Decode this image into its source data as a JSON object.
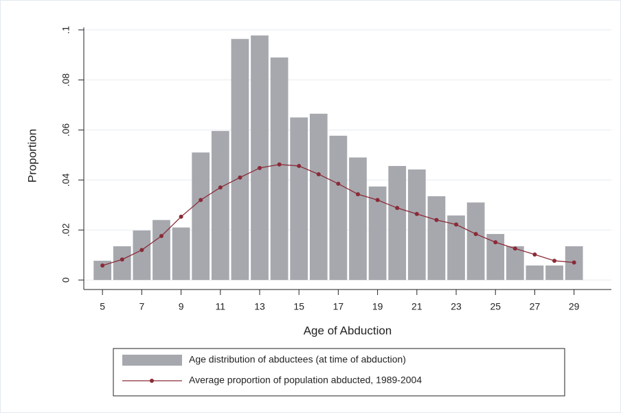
{
  "chart_data": {
    "type": "bar",
    "x_label": "Age of Abduction",
    "y_label": "Proportion",
    "x": [
      5,
      6,
      7,
      8,
      9,
      10,
      11,
      12,
      13,
      14,
      15,
      16,
      17,
      18,
      19,
      20,
      21,
      22,
      23,
      24,
      25,
      26,
      27,
      28,
      29
    ],
    "series": [
      {
        "name": "Age distribution of abductees (at time of abduction)",
        "type": "bar",
        "color": "#a6a8ae",
        "values": [
          0.0077,
          0.0135,
          0.0198,
          0.024,
          0.021,
          0.051,
          0.0596,
          0.0964,
          0.0978,
          0.089,
          0.065,
          0.0665,
          0.0577,
          0.049,
          0.0374,
          0.0456,
          0.0442,
          0.0335,
          0.0258,
          0.031,
          0.0184,
          0.0135,
          0.0058,
          0.0058,
          0.0135
        ]
      },
      {
        "name": "Average proportion of population abducted, 1989-2004",
        "type": "line",
        "color": "#8b2a36",
        "values": [
          0.0058,
          0.0082,
          0.012,
          0.0176,
          0.0253,
          0.032,
          0.037,
          0.041,
          0.0448,
          0.0462,
          0.0456,
          0.0423,
          0.0385,
          0.0343,
          0.032,
          0.0288,
          0.0264,
          0.024,
          0.0222,
          0.0184,
          0.0151,
          0.0126,
          0.0102,
          0.0077,
          0.007
        ]
      }
    ],
    "xlim": [
      4.05,
      30.9
    ],
    "xticks": [
      5,
      7,
      9,
      11,
      13,
      15,
      17,
      19,
      21,
      23,
      25,
      27,
      29
    ],
    "ylim": [
      -0.0038,
      0.101
    ],
    "yticks": [
      0,
      {
        "value": 0.02,
        "label": ".02"
      },
      {
        "value": 0.04,
        "label": ".04"
      },
      {
        "value": 0.06,
        "label": ".06"
      },
      {
        "value": 0.08,
        "label": ".08"
      },
      {
        "value": 0.1,
        "label": ".1"
      }
    ],
    "grid": true,
    "legend": "bottom"
  }
}
